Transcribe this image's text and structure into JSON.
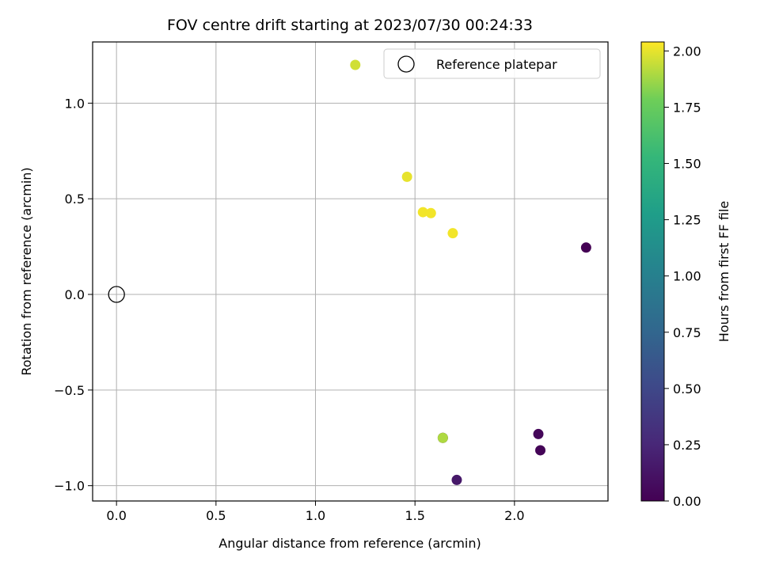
{
  "chart_data": {
    "type": "scatter",
    "title": "FOV centre drift starting at 2023/07/30 00:24:33",
    "xlabel": "Angular distance from reference (arcmin)",
    "ylabel": "Rotation from reference (arcmin)",
    "xlim": [
      -0.12,
      2.47
    ],
    "ylim": [
      -1.08,
      1.32
    ],
    "xticks": [
      0.0,
      0.5,
      1.0,
      1.5,
      2.0
    ],
    "xtick_labels": [
      "0.0",
      "0.5",
      "1.0",
      "1.5",
      "2.0"
    ],
    "yticks": [
      -1.0,
      -0.5,
      0.0,
      0.5,
      1.0
    ],
    "ytick_labels": [
      "−1.0",
      "−0.5",
      "0.0",
      "0.5",
      "1.0"
    ],
    "grid": true,
    "legend": {
      "placement": "top-right",
      "entries": [
        "Reference platepar"
      ]
    },
    "reference_point": {
      "x": 0.0,
      "y": 0.0
    },
    "points": [
      {
        "x": 2.36,
        "y": 0.245,
        "hours": 0.0
      },
      {
        "x": 2.13,
        "y": -0.815,
        "hours": 0.02
      },
      {
        "x": 2.12,
        "y": -0.73,
        "hours": 0.04
      },
      {
        "x": 1.71,
        "y": -0.97,
        "hours": 0.15
      },
      {
        "x": 1.64,
        "y": -0.75,
        "hours": 0.04
      },
      {
        "x": 1.2,
        "y": 1.2,
        "hours": 1.96
      },
      {
        "x": 1.46,
        "y": 0.615,
        "hours": 2.0
      },
      {
        "x": 1.54,
        "y": 0.43,
        "hours": 2.02
      },
      {
        "x": 1.58,
        "y": 0.425,
        "hours": 2.02
      },
      {
        "x": 1.69,
        "y": 0.32,
        "hours": 2.02
      },
      {
        "x": 1.64,
        "y": -0.75,
        "hours": 1.9
      }
    ],
    "colorbar": {
      "label": "Hours from first FF file",
      "range": [
        0.0,
        2.04
      ],
      "colormap": "viridis",
      "ticks": [
        0.0,
        0.25,
        0.5,
        0.75,
        1.0,
        1.25,
        1.5,
        1.75,
        2.0
      ],
      "tick_labels": [
        "0.00",
        "0.25",
        "0.50",
        "0.75",
        "1.00",
        "1.25",
        "1.50",
        "1.75",
        "2.00"
      ]
    }
  }
}
